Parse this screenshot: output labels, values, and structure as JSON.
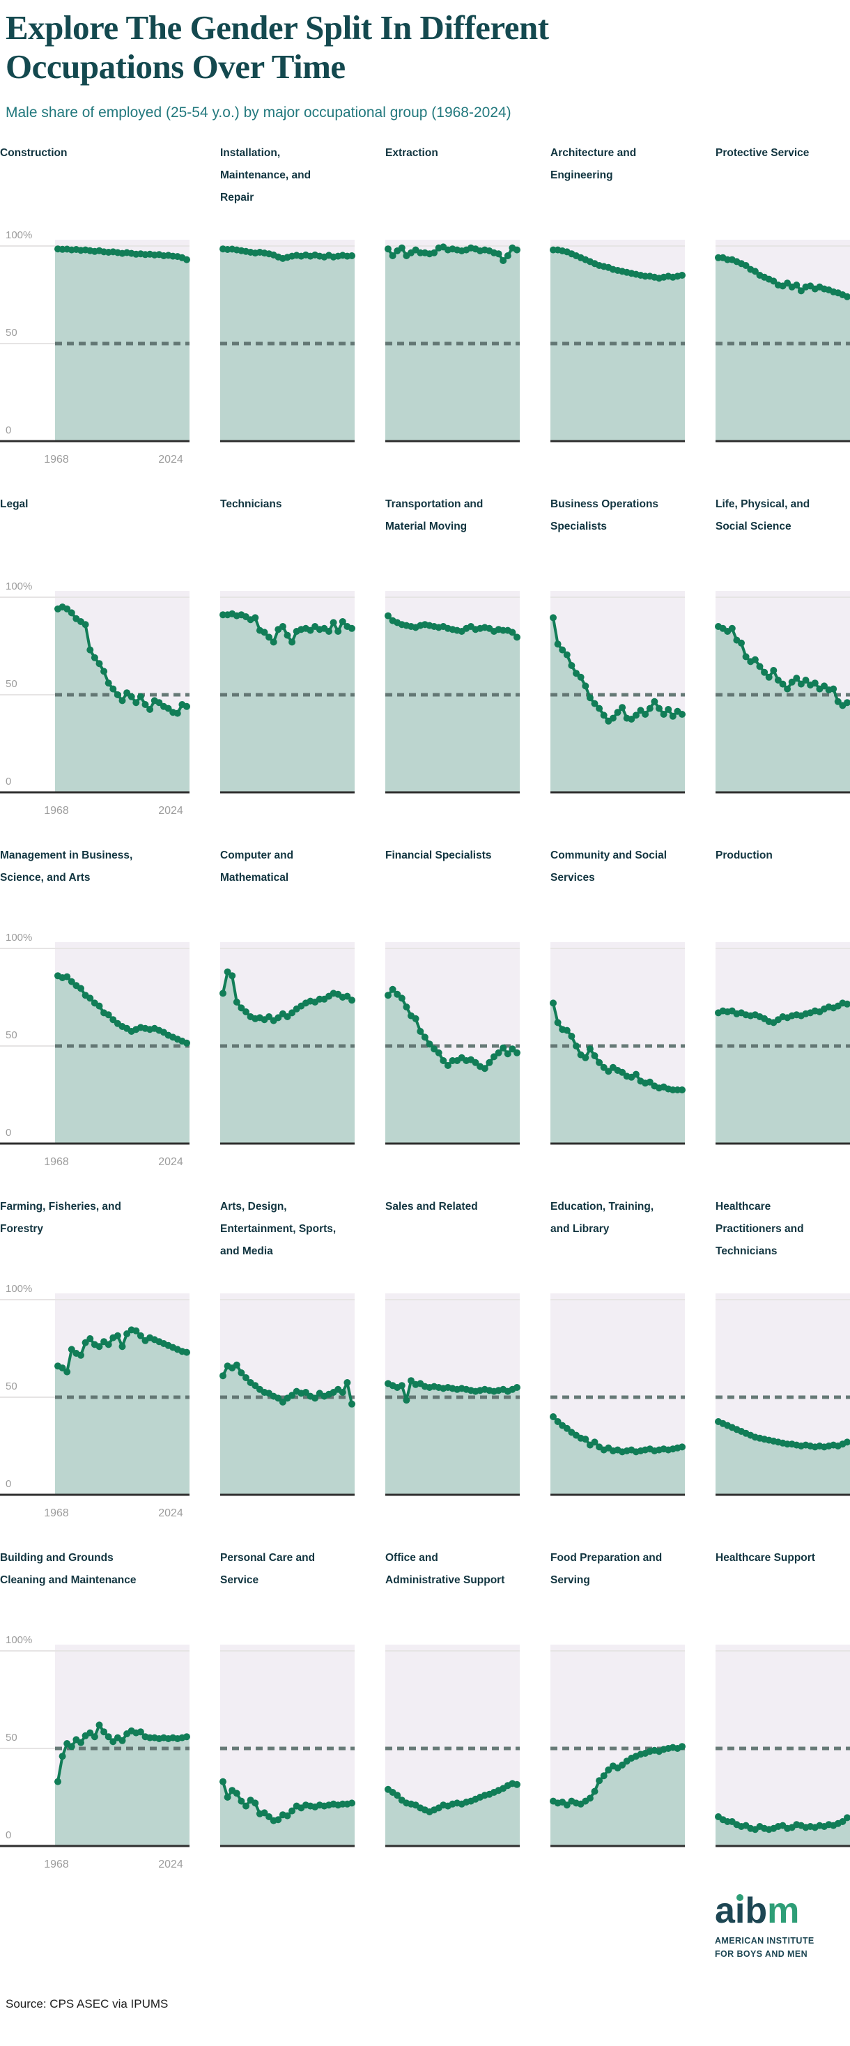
{
  "header": {
    "title": "Explore The Gender Split In Different Occupations Over Time",
    "subtitle": "Male share of employed (25-54 y.o.) by major occupational group (1968-2024)"
  },
  "axis": {
    "y_labels": [
      "100%",
      "50",
      "0"
    ],
    "x_labels": [
      "1968",
      "2024"
    ]
  },
  "colors": {
    "line_green": "#117d57",
    "area_fill": "#bcd5cf",
    "plot_background": "#f2eef4",
    "dashed_line": "#5f7370",
    "gridline": "#e6e4e4",
    "axis_baseline": "#2e2e2e",
    "heading_teal": "#14494f",
    "subtitle_teal": "#23797e",
    "chart_title_navy": "#123540",
    "logo_dark": "#1d4653",
    "logo_green": "#2e9e77"
  },
  "chart_data": {
    "type": "line",
    "unit": "percent male share of employed (25-54 y.o.)",
    "x": [
      1968,
      1970,
      1972,
      1974,
      1976,
      1978,
      1980,
      1982,
      1984,
      1986,
      1988,
      1990,
      1992,
      1994,
      1996,
      1998,
      2000,
      2002,
      2004,
      2006,
      2008,
      2010,
      2012,
      2014,
      2016,
      2018,
      2020,
      2022,
      2024
    ],
    "x_range": [
      1968,
      2024
    ],
    "ylim": [
      0,
      100
    ],
    "dashed_reference_line": 50,
    "grid": "horizontal at 0, 50, 100",
    "legend": "none",
    "charts": [
      {
        "title": "Construction",
        "values": [
          98.5,
          98.3,
          98.4,
          98,
          98.2,
          97.8,
          98,
          97.6,
          97.2,
          97.6,
          97,
          96.8,
          97,
          96.6,
          96.2,
          96.6,
          96.2,
          95.8,
          96,
          95.6,
          95.8,
          95.4,
          95.6,
          95,
          95.2,
          94.8,
          94.6,
          94,
          93
        ]
      },
      {
        "title": "Installation, Maintenance, and Repair",
        "values": [
          98.5,
          98.2,
          98.4,
          98,
          97.6,
          97.2,
          96.8,
          96.4,
          96.8,
          96.4,
          96,
          95.4,
          94.4,
          93.6,
          94.2,
          94.8,
          95.2,
          94.8,
          95.4,
          94.8,
          95.4,
          94.8,
          94.4,
          95.2,
          94.4,
          94.8,
          95.2,
          94.8,
          95
        ]
      },
      {
        "title": "Extraction",
        "values": [
          98.5,
          95,
          97.5,
          99,
          95,
          96.5,
          98,
          96.5,
          96.5,
          96,
          96.5,
          99,
          99.5,
          98,
          98.5,
          98,
          97.5,
          98,
          99,
          98.5,
          97.5,
          98,
          97.5,
          96.5,
          96,
          92.5,
          95,
          99,
          98
        ]
      },
      {
        "title": "Architecture and Engineering",
        "values": [
          98,
          98,
          97.5,
          97,
          96,
          95,
          94,
          93,
          92,
          91,
          90,
          89.5,
          89,
          88,
          87.5,
          87,
          86.5,
          86,
          85.5,
          85,
          84.5,
          84.5,
          84,
          83.5,
          84,
          84.5,
          84,
          84.5,
          85
        ]
      },
      {
        "title": "Protective Service",
        "values": [
          94,
          94,
          93,
          93,
          92,
          91,
          90,
          88,
          87,
          85,
          84,
          83,
          82,
          80,
          79.5,
          81,
          79,
          80,
          77,
          79,
          79.5,
          78,
          79,
          78,
          77.5,
          76.5,
          76,
          75,
          74
        ]
      },
      {
        "title": "Legal",
        "values": [
          94,
          95,
          94,
          92,
          89,
          87.5,
          86,
          73,
          69,
          66,
          62,
          56,
          53,
          50,
          47,
          51,
          49,
          46,
          49,
          45,
          42.5,
          47,
          46,
          44,
          43,
          41,
          40.5,
          45,
          44
        ]
      },
      {
        "title": "Technicians",
        "values": [
          91,
          91,
          91.5,
          90.5,
          91,
          90,
          88.5,
          89.5,
          83,
          82,
          79.5,
          77,
          83.5,
          85,
          80.5,
          77,
          82.5,
          83.5,
          84,
          83,
          85,
          83.5,
          84,
          82.5,
          87,
          82.5,
          87.5,
          85,
          84
        ]
      },
      {
        "title": "Transportation and Material Moving",
        "values": [
          90.5,
          88,
          87,
          86,
          85.5,
          85,
          84.5,
          85.5,
          86,
          85.5,
          85,
          84.5,
          85,
          84,
          83.5,
          83,
          82.5,
          84,
          85,
          83.5,
          84,
          84.5,
          84,
          82.5,
          83.5,
          83,
          83,
          82,
          79.5
        ]
      },
      {
        "title": "Business Operations Specialists",
        "values": [
          89.5,
          76,
          73,
          70.5,
          65,
          61,
          59,
          54.5,
          48.5,
          45.5,
          43,
          39.5,
          36.5,
          38,
          41,
          43.5,
          38,
          37.5,
          39.5,
          42,
          40,
          43,
          46.5,
          43,
          40,
          42.5,
          39,
          41.5,
          40
        ]
      },
      {
        "title": "Life, Physical, and Social Science",
        "values": [
          85,
          84,
          82.5,
          84,
          78,
          76.5,
          69.5,
          67,
          68,
          64.5,
          61.5,
          59,
          62.5,
          57.5,
          55.5,
          53,
          56.5,
          58.5,
          55.5,
          57.5,
          55,
          56,
          53,
          54.5,
          52.5,
          53,
          46.5,
          44.5,
          46
        ]
      },
      {
        "title": "Management in Business, Science, and Arts",
        "values": [
          86,
          85,
          85.5,
          83,
          81,
          79.5,
          76,
          74.5,
          72,
          70.5,
          67,
          66,
          63.5,
          61.5,
          60,
          59,
          57.5,
          58.5,
          59.5,
          59,
          58.5,
          59,
          58,
          57,
          55.5,
          54.5,
          53.5,
          52.5,
          51.5
        ]
      },
      {
        "title": "Computer and Mathematical",
        "values": [
          77,
          88,
          86,
          72.5,
          69.5,
          67.5,
          65,
          64,
          64.5,
          63.5,
          65,
          63,
          64.5,
          66.5,
          65,
          67,
          69,
          70.5,
          72,
          73,
          72.5,
          74,
          74,
          75.5,
          77,
          76.5,
          75,
          75.5,
          73.5
        ]
      },
      {
        "title": "Financial Specialists",
        "values": [
          76,
          79,
          76.5,
          74.5,
          70,
          65.5,
          64,
          57.5,
          54.5,
          51,
          48.5,
          46.5,
          42.5,
          40,
          42.5,
          42.5,
          44,
          42.5,
          43,
          41.5,
          39.5,
          38.5,
          41.5,
          44.5,
          46.5,
          49,
          46,
          48.5,
          46.5
        ]
      },
      {
        "title": "Community and Social Services",
        "values": [
          72,
          62,
          58.5,
          58,
          55,
          50,
          45.5,
          44,
          48.5,
          45,
          41.5,
          39,
          37,
          39,
          37.5,
          36.5,
          34.5,
          34,
          35.5,
          32,
          31,
          31.5,
          29.5,
          28.5,
          29,
          28,
          27.5,
          27.5,
          27.5
        ]
      },
      {
        "title": "Production",
        "values": [
          67,
          68,
          67.5,
          68,
          66.5,
          67,
          66,
          65.5,
          66,
          65,
          64,
          62.5,
          62,
          63.5,
          65,
          64.5,
          65.5,
          66,
          65.5,
          66.5,
          67,
          68,
          67.5,
          69,
          70,
          69.5,
          70.5,
          72,
          71.5
        ]
      },
      {
        "title": "Farming, Fisheries, and Forestry",
        "values": [
          66,
          65,
          63,
          74.5,
          72.5,
          71.5,
          78,
          80,
          77,
          76,
          78.5,
          77,
          80.5,
          81.5,
          76,
          82.5,
          84.5,
          84,
          81.5,
          79,
          80.5,
          79.5,
          78.5,
          77.5,
          76.5,
          75.5,
          74.5,
          73.5,
          73
        ]
      },
      {
        "title": "Arts, Design, Entertainment, Sports, and Media",
        "values": [
          61,
          66,
          65,
          66.5,
          62.5,
          60,
          57.5,
          56,
          54,
          52.5,
          52,
          50.5,
          49.5,
          47.5,
          49.5,
          51,
          53,
          52,
          52.5,
          50.5,
          49.5,
          52,
          50.5,
          51.5,
          52.5,
          54,
          52.5,
          57.5,
          46.5
        ]
      },
      {
        "title": "Sales and Related",
        "values": [
          57,
          56,
          55,
          56,
          48.5,
          58.5,
          56.5,
          57,
          55.5,
          55,
          55.5,
          55,
          54.5,
          55,
          54.5,
          54,
          54.5,
          54,
          53.5,
          53,
          53.5,
          54,
          53.5,
          53,
          53.5,
          54,
          53,
          54,
          55
        ]
      },
      {
        "title": "Education, Training, and Library",
        "values": [
          40,
          37.5,
          35.5,
          34,
          32,
          30.5,
          29,
          28.5,
          25.5,
          27,
          24.5,
          23,
          24,
          22.5,
          23,
          22,
          22.5,
          23,
          22,
          22.5,
          23,
          23.5,
          22.5,
          23,
          23.5,
          23,
          23.5,
          24,
          24.5
        ]
      },
      {
        "title": "Healthcare Practitioners and Technicians",
        "values": [
          37.5,
          36.5,
          35.5,
          34.5,
          33.5,
          32.5,
          31.5,
          30.5,
          29.5,
          29,
          28.5,
          28,
          27.5,
          27,
          26.5,
          26,
          26,
          25.5,
          25,
          25.5,
          25,
          24.5,
          25,
          24.5,
          25,
          25.5,
          25,
          26,
          27
        ]
      },
      {
        "title": "Building and Grounds Cleaning and Maintenance",
        "values": [
          33,
          46,
          52.5,
          51,
          54.5,
          53,
          56.5,
          58,
          56,
          62,
          58.5,
          56,
          53.5,
          55.5,
          54,
          57.5,
          59,
          58,
          58.5,
          56,
          55.5,
          55.5,
          55,
          55.5,
          55,
          55.5,
          55,
          55.5,
          56
        ]
      },
      {
        "title": "Personal Care and Service",
        "values": [
          33,
          25,
          28.5,
          27,
          23,
          20.5,
          23.5,
          22,
          16.5,
          17,
          15,
          13,
          13.5,
          16,
          15.5,
          18,
          20.5,
          19.5,
          21,
          20.5,
          20,
          21,
          20.5,
          21,
          21.5,
          21,
          21.5,
          21.5,
          22
        ]
      },
      {
        "title": "Office and Administrative Support",
        "values": [
          29,
          27.5,
          26,
          23.5,
          22,
          21.5,
          21,
          19.5,
          18.5,
          17.5,
          18.5,
          19.5,
          21,
          20.5,
          21.5,
          22,
          21.5,
          22.5,
          23,
          24,
          25,
          26,
          26.5,
          27.5,
          28.5,
          29.5,
          31,
          32,
          31.5
        ]
      },
      {
        "title": "Food Preparation and Serving",
        "values": [
          23,
          22,
          22.5,
          21,
          23,
          22,
          21.5,
          23,
          24.5,
          28,
          33.5,
          36,
          39,
          41,
          40,
          41.5,
          43.5,
          45,
          46,
          47,
          47.5,
          48.5,
          49,
          48.5,
          49.5,
          50,
          50.5,
          50,
          51
        ]
      },
      {
        "title": "Healthcare Support",
        "values": [
          15,
          13.5,
          12.5,
          12.5,
          11,
          10,
          10.5,
          9,
          8.5,
          10,
          9,
          8.5,
          9,
          10,
          10.5,
          9,
          9.5,
          11,
          10.5,
          9.5,
          10,
          9.5,
          10.5,
          10,
          11,
          10.5,
          11.5,
          12.5,
          14.5
        ]
      }
    ]
  },
  "footer": {
    "source": "Source: CPS ASEC via IPUMS",
    "logo": {
      "wordmark": "aibm",
      "tagline_line1": "AMERICAN INSTITUTE",
      "tagline_line2": "FOR BOYS AND MEN"
    }
  }
}
